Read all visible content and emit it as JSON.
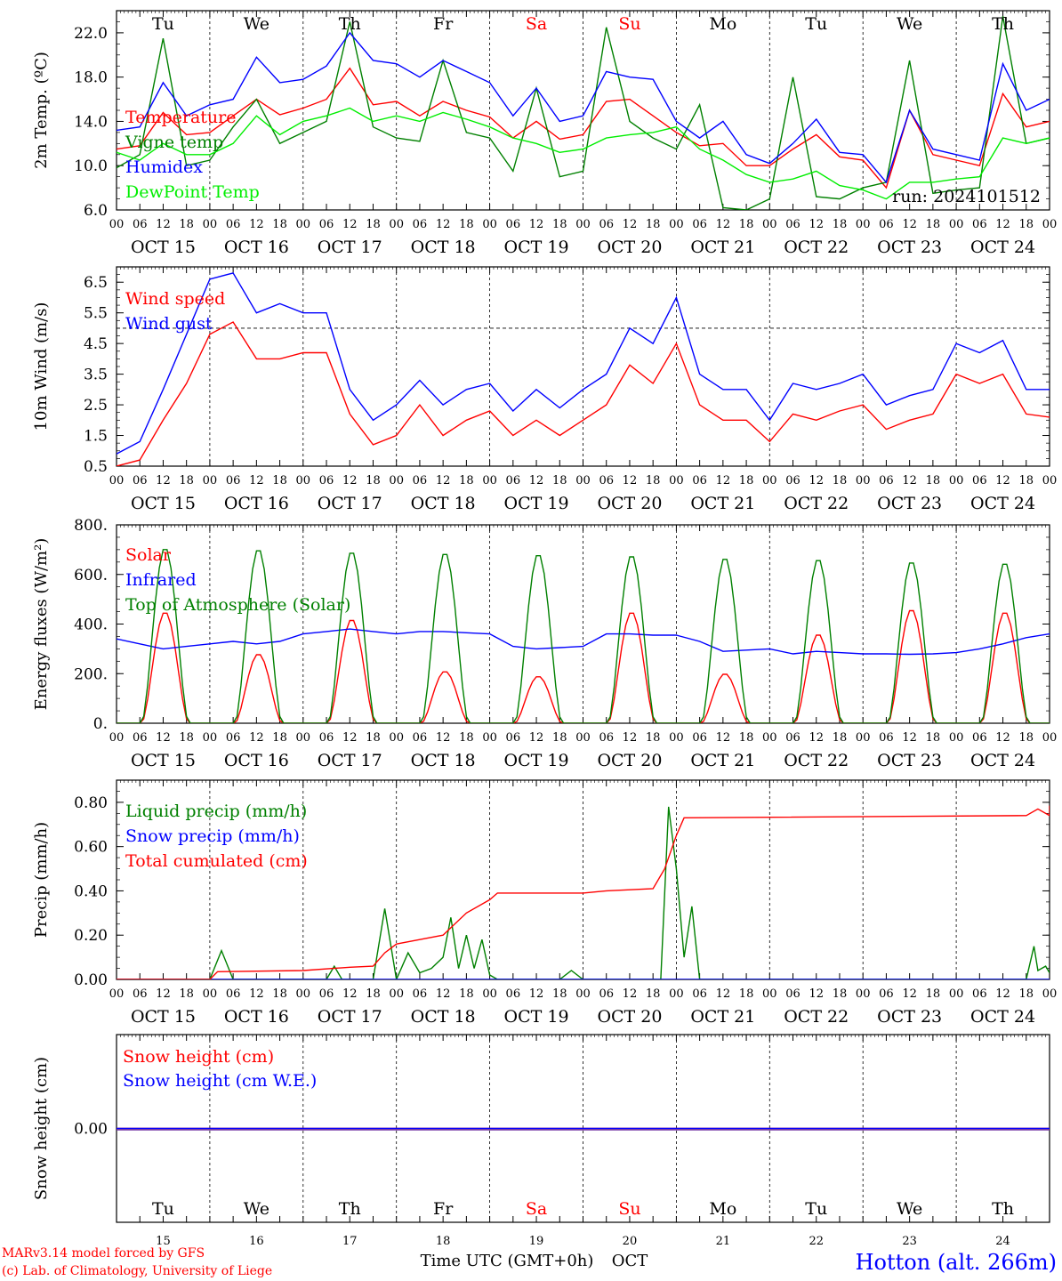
{
  "colors": {
    "temperature": "#ff0000",
    "vigne_temp": "#008000",
    "humidex": "#0000ff",
    "dewpoint": "#00ee00",
    "wind_speed": "#ff0000",
    "wind_gust": "#0000ff",
    "solar": "#ff0000",
    "infrared": "#0000ff",
    "toa": "#008000",
    "liquid": "#008000",
    "snow_precip": "#0000ff",
    "total_cum": "#ff0000",
    "snow_height": "#ff0000",
    "snow_we": "#0000ff",
    "weekend_day": "#ff0000",
    "station": "#0000ff"
  },
  "days": {
    "top_labels": [
      "Tu",
      "We",
      "Th",
      "Fr",
      "Sa",
      "Su",
      "Mo",
      "Tu",
      "We",
      "Th"
    ],
    "weekend_index": [
      4,
      5
    ],
    "hour_ticks": [
      "00",
      "06",
      "12",
      "18"
    ],
    "date_labels": [
      "OCT 15",
      "OCT 16",
      "OCT 17",
      "OCT 18",
      "OCT 19",
      "OCT 20",
      "OCT 21",
      "OCT 22",
      "OCT 23",
      "OCT 24"
    ],
    "day_numbers": [
      "15",
      "16",
      "17",
      "18",
      "19",
      "20",
      "21",
      "22",
      "23",
      "24"
    ]
  },
  "footer": {
    "model": "MARv3.14 model forced by GFS",
    "lab": "(c) Lab. of Climatology, University of Liege",
    "time_axis": "Time UTC (GMT+0h)",
    "month": "OCT",
    "station": "Hotton (alt. 266m)"
  },
  "chart_data": [
    {
      "type": "line",
      "ylabel": "2m Temp. (ºC)",
      "ylim": [
        6,
        24
      ],
      "yticks": [
        "6.0",
        "10.0",
        "14.0",
        "18.0",
        "22.0"
      ],
      "x_unit": "hours since OCT 15 00 UTC",
      "x_step_hours": 6,
      "annotation": "run: 2024101512",
      "series": [
        {
          "name": "Temperature",
          "key": "temperature",
          "values": [
            11.5,
            11.8,
            14.8,
            12.8,
            13.0,
            14.5,
            16.0,
            14.6,
            15.2,
            16.0,
            18.8,
            15.5,
            15.8,
            14.5,
            15.8,
            15.0,
            14.4,
            12.5,
            14.0,
            12.4,
            12.8,
            15.8,
            16.0,
            14.5,
            13.0,
            11.8,
            12.0,
            10.0,
            10.0,
            11.5,
            12.8,
            10.8,
            10.5,
            8.0,
            15.0,
            11.0,
            10.5,
            10.0,
            16.5,
            13.5,
            14.0
          ]
        },
        {
          "name": "Vigne temp",
          "key": "vigne_temp",
          "values": [
            9.8,
            11.0,
            21.5,
            10.0,
            10.5,
            13.5,
            16.0,
            12.0,
            13.0,
            14.0,
            23.0,
            13.5,
            12.5,
            12.2,
            19.5,
            13.0,
            12.5,
            9.5,
            17.0,
            9.0,
            9.5,
            22.5,
            14.0,
            12.5,
            11.5,
            15.5,
            6.2,
            6.0,
            7.0,
            18.0,
            7.2,
            7.0,
            8.0,
            8.5,
            19.5,
            7.5,
            7.8,
            8.0,
            23.5,
            12.0,
            12.5
          ]
        },
        {
          "name": "Humidex",
          "key": "humidex",
          "values": [
            13.2,
            13.5,
            17.5,
            14.5,
            15.5,
            16.0,
            19.8,
            17.5,
            17.8,
            19.0,
            22.0,
            19.5,
            19.2,
            18.0,
            19.5,
            18.5,
            17.5,
            14.5,
            17.0,
            14.0,
            14.5,
            18.5,
            18.0,
            17.8,
            14.0,
            12.5,
            14.0,
            11.0,
            10.2,
            12.0,
            14.2,
            11.2,
            11.0,
            8.5,
            15.0,
            11.5,
            11.0,
            10.5,
            19.2,
            15.0,
            16.0
          ]
        },
        {
          "name": "DewPoint Temp",
          "key": "dewpoint",
          "values": [
            11.2,
            10.5,
            12.0,
            11.0,
            11.0,
            12.0,
            14.5,
            12.8,
            14.0,
            14.5,
            15.2,
            14.0,
            14.5,
            14.0,
            14.8,
            14.2,
            13.5,
            12.5,
            12.0,
            11.2,
            11.5,
            12.5,
            12.8,
            13.0,
            13.5,
            11.5,
            10.5,
            9.2,
            8.5,
            8.8,
            9.5,
            8.2,
            7.8,
            7.0,
            8.5,
            8.5,
            8.8,
            9.0,
            12.5,
            12.0,
            12.5
          ]
        }
      ]
    },
    {
      "type": "line",
      "ylabel": "10m Wind (m/s)",
      "ylim": [
        0.5,
        7.0
      ],
      "yticks": [
        "0.5",
        "1.5",
        "2.5",
        "3.5",
        "4.5",
        "5.5",
        "6.5"
      ],
      "reference_line": 5,
      "x_unit": "hours since OCT 15 00 UTC",
      "x_step_hours": 6,
      "series": [
        {
          "name": "Wind speed",
          "key": "wind_speed",
          "values": [
            0.5,
            0.7,
            2.0,
            3.2,
            4.8,
            5.2,
            4.0,
            4.0,
            4.2,
            4.2,
            2.2,
            1.2,
            1.5,
            2.5,
            1.5,
            2.0,
            2.3,
            1.5,
            2.0,
            1.5,
            2.0,
            2.5,
            3.8,
            3.2,
            4.5,
            2.5,
            2.0,
            2.0,
            1.3,
            2.2,
            2.0,
            2.3,
            2.5,
            1.7,
            2.0,
            2.2,
            3.5,
            3.2,
            3.5,
            2.2,
            2.1
          ]
        },
        {
          "name": "Wind gust",
          "key": "wind_gust",
          "values": [
            0.9,
            1.3,
            3.0,
            4.8,
            6.6,
            6.8,
            5.5,
            5.8,
            5.5,
            5.5,
            3.0,
            2.0,
            2.5,
            3.3,
            2.5,
            3.0,
            3.2,
            2.3,
            3.0,
            2.4,
            3.0,
            3.5,
            5.0,
            4.5,
            6.0,
            3.5,
            3.0,
            3.0,
            2.0,
            3.2,
            3.0,
            3.2,
            3.5,
            2.5,
            2.8,
            3.0,
            4.5,
            4.2,
            4.6,
            3.0,
            3.0
          ]
        }
      ]
    },
    {
      "type": "line",
      "ylabel": "Energy fluxes (W/m²)",
      "ylim": [
        0,
        800
      ],
      "yticks": [
        "0.",
        "200.",
        "400.",
        "600.",
        "800."
      ],
      "x_unit": "hours since OCT 15 00 UTC",
      "diurnal": {
        "rise_hour": 6.5,
        "set_hour": 18.5
      },
      "series": [
        {
          "name": "Solar",
          "key": "solar",
          "daily_peaks": [
            450,
            280,
            420,
            210,
            190,
            450,
            200,
            360,
            460,
            450
          ]
        },
        {
          "name": "Infrared",
          "key": "infrared",
          "x_step_hours": 6,
          "values": [
            340,
            320,
            300,
            310,
            320,
            330,
            320,
            330,
            360,
            370,
            380,
            370,
            360,
            370,
            370,
            365,
            360,
            310,
            300,
            305,
            310,
            360,
            360,
            355,
            355,
            330,
            290,
            295,
            300,
            280,
            290,
            285,
            280,
            280,
            278,
            280,
            285,
            300,
            320,
            345,
            360
          ]
        },
        {
          "name": "Top of Atmosphere (Solar)",
          "key": "toa",
          "daily_peaks": [
            710,
            705,
            695,
            690,
            685,
            680,
            670,
            665,
            655,
            650
          ]
        }
      ]
    },
    {
      "type": "line",
      "ylabel": "Precip (mm/h)",
      "ylim": [
        0,
        0.9
      ],
      "yticks": [
        "0.00",
        "0.20",
        "0.40",
        "0.60",
        "0.80"
      ],
      "x_unit": "hours since OCT 15 00 UTC",
      "series": [
        {
          "name": "Liquid precip (mm/h)",
          "key": "liquid",
          "points": [
            [
              0,
              0
            ],
            [
              6,
              0.0
            ],
            [
              24,
              0
            ],
            [
              27,
              0.13
            ],
            [
              30,
              0
            ],
            [
              54,
              0
            ],
            [
              56,
              0.06
            ],
            [
              58,
              0
            ],
            [
              66,
              0
            ],
            [
              69,
              0.32
            ],
            [
              72,
              0
            ],
            [
              75,
              0.12
            ],
            [
              78,
              0.03
            ],
            [
              81,
              0.05
            ],
            [
              84,
              0.1
            ],
            [
              86,
              0.28
            ],
            [
              88,
              0.05
            ],
            [
              90,
              0.2
            ],
            [
              92,
              0.05
            ],
            [
              94,
              0.18
            ],
            [
              96,
              0.02
            ],
            [
              98,
              0
            ],
            [
              114,
              0
            ],
            [
              117,
              0.04
            ],
            [
              120,
              0
            ],
            [
              140,
              0
            ],
            [
              142,
              0.78
            ],
            [
              144,
              0.5
            ],
            [
              146,
              0.1
            ],
            [
              148,
              0.33
            ],
            [
              150,
              0
            ],
            [
              234,
              0
            ],
            [
              236,
              0.15
            ],
            [
              237,
              0.04
            ],
            [
              239,
              0.06
            ],
            [
              240,
              0.03
            ]
          ]
        },
        {
          "name": "Snow precip (mm/h)",
          "key": "snow_precip",
          "points": [
            [
              0,
              0
            ],
            [
              240,
              0
            ]
          ]
        },
        {
          "name": "Total cumulated (cm)",
          "key": "total_cum",
          "points": [
            [
              0,
              0
            ],
            [
              24,
              0
            ],
            [
              26,
              0.035
            ],
            [
              48,
              0.04
            ],
            [
              60,
              0.055
            ],
            [
              66,
              0.06
            ],
            [
              69,
              0.12
            ],
            [
              72,
              0.16
            ],
            [
              78,
              0.18
            ],
            [
              84,
              0.2
            ],
            [
              90,
              0.3
            ],
            [
              96,
              0.36
            ],
            [
              98,
              0.39
            ],
            [
              120,
              0.39
            ],
            [
              126,
              0.4
            ],
            [
              138,
              0.41
            ],
            [
              141,
              0.5
            ],
            [
              144,
              0.65
            ],
            [
              146,
              0.73
            ],
            [
              240,
              0.74
            ],
            [
              234,
              0.74
            ],
            [
              237,
              0.77
            ],
            [
              240,
              0.785
            ]
          ]
        }
      ]
    },
    {
      "type": "line",
      "ylabel": "Snow height (cm)",
      "yticks": [
        "0.00"
      ],
      "x_unit": "hours since OCT 15 00 UTC",
      "series": [
        {
          "name": "Snow height (cm)",
          "key": "snow_height",
          "points": [
            [
              0,
              0
            ],
            [
              240,
              0
            ]
          ]
        },
        {
          "name": "Snow height (cm W.E.)",
          "key": "snow_we",
          "points": [
            [
              0,
              0
            ],
            [
              240,
              0
            ]
          ]
        }
      ]
    }
  ]
}
